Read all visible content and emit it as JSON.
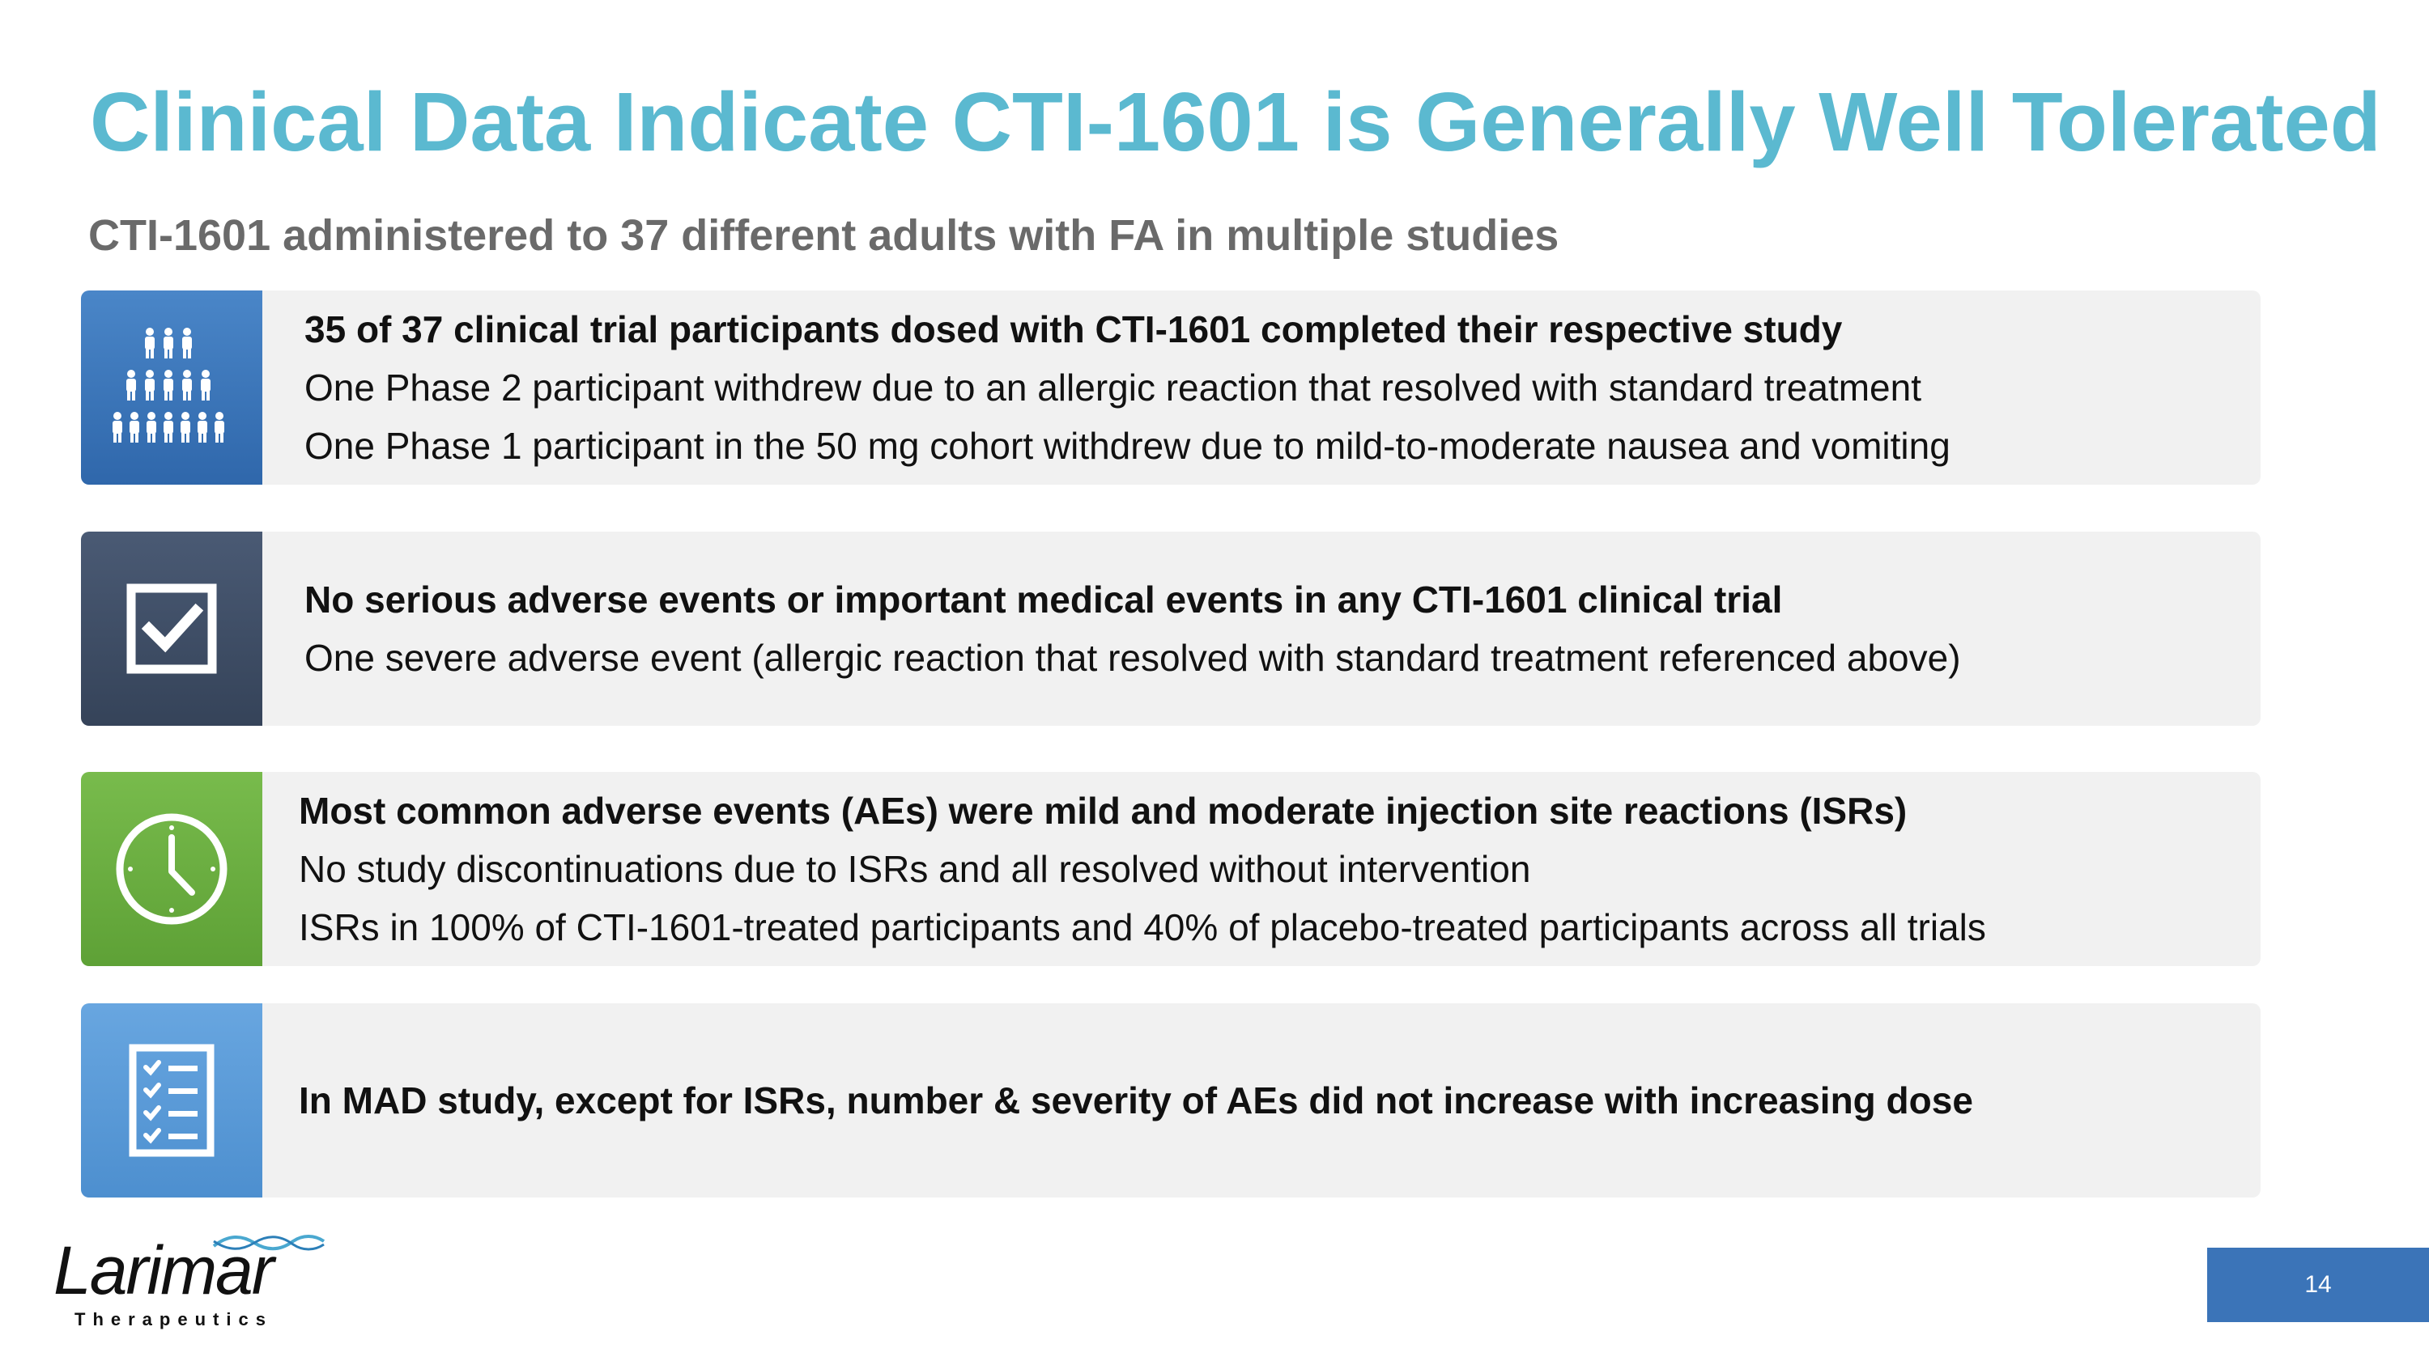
{
  "slide": {
    "title": "Clinical Data Indicate CTI-1601 is Generally Well Tolerated",
    "subtitle": "CTI-1601 administered to 37 different adults with FA in multiple studies",
    "page_number": "14"
  },
  "cards": [
    {
      "icon": "people-group-icon",
      "color": "#3d78be",
      "lines": [
        "35 of 37 clinical trial participants dosed with CTI-1601 completed their respective study",
        "One Phase 2 participant withdrew due to an allergic reaction that resolved with standard treatment",
        "One Phase 1 participant in the 50 mg cohort withdrew due to mild-to-moderate nausea and vomiting"
      ]
    },
    {
      "icon": "checkbox-icon",
      "color": "#3e4d66",
      "lines": [
        "No serious adverse events or important medical events in any CTI-1601 clinical trial",
        "One severe adverse event (allergic reaction that resolved with standard treatment referenced above)"
      ]
    },
    {
      "icon": "clock-icon",
      "color": "#6db143",
      "lines": [
        "Most common adverse events (AEs) were mild and moderate injection site reactions (ISRs)",
        "No study discontinuations due to ISRs and all resolved without intervention",
        "ISRs in 100% of CTI-1601-treated participants and 40% of placebo-treated participants across all trials"
      ]
    },
    {
      "icon": "checklist-icon",
      "color": "#5b9bd8",
      "lines": [
        "In MAD study, except for ISRs, number & severity of AEs did not increase with increasing dose"
      ]
    }
  ],
  "logo": {
    "name": "Larimar",
    "tagline": "Therapeutics"
  }
}
